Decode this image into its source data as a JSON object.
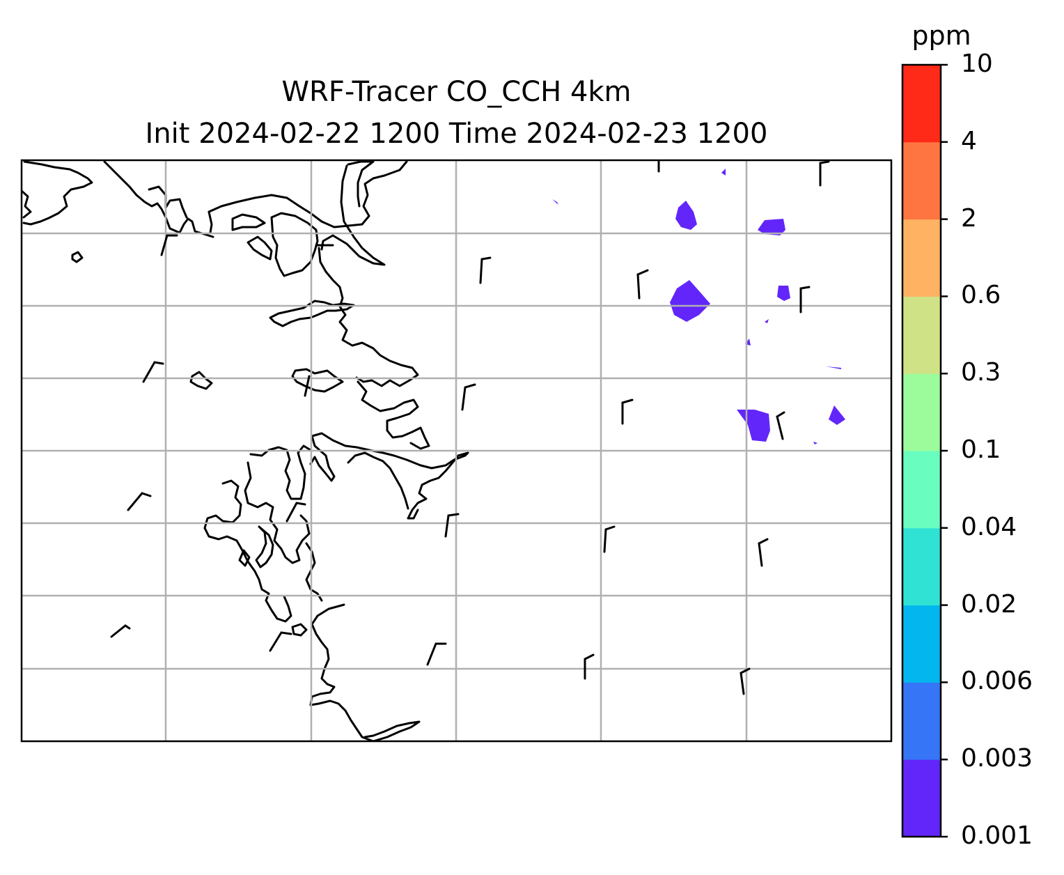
{
  "title": {
    "line1": "WRF-Tracer CO_CCH 4km",
    "line2": "Init 2024-02-22 1200 Time 2024-02-23 1200"
  },
  "colorbar": {
    "unit": "ppm",
    "levels": [
      "0.001",
      "0.003",
      "0.006",
      "0.02",
      "0.04",
      "0.1",
      "0.3",
      "0.6",
      "2",
      "4",
      "10"
    ],
    "colors": [
      "#6226fa",
      "#3575f6",
      "#03b6ee",
      "#30e2d4",
      "#6afdc0",
      "#9cfc9c",
      "#d0e286",
      "#ffb262",
      "#ff7541",
      "#ff2a17"
    ]
  },
  "map": {
    "frame_color": "#000000",
    "grid_color": "#b0b0b0",
    "coastline_color": "#000000",
    "tracer_color": "#6226fa",
    "wind_barb_color": "#000000"
  }
}
